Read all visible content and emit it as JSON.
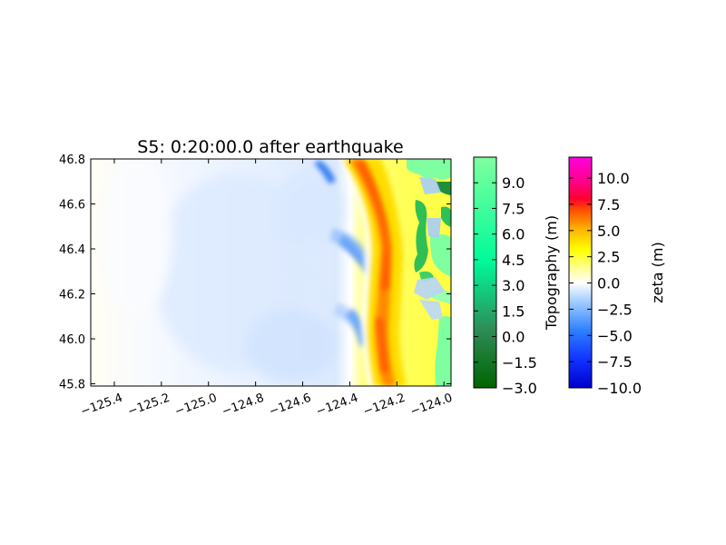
{
  "chart_data": {
    "type": "heatmap",
    "title": "S5: 0:20:00.0 after earthquake",
    "xlabel": "",
    "ylabel": "",
    "xlim": [
      -125.5,
      -123.97
    ],
    "ylim": [
      45.79,
      46.8
    ],
    "x_ticks": [
      -125.4,
      -125.2,
      -125.0,
      -124.8,
      -124.6,
      -124.4,
      -124.2,
      -124.0
    ],
    "x_tick_labels": [
      "−125.4",
      "−125.2",
      "−125.0",
      "−124.8",
      "−124.6",
      "−124.4",
      "−124.2",
      "−124.0"
    ],
    "y_ticks": [
      45.8,
      46.0,
      46.2,
      46.4,
      46.6,
      46.8
    ],
    "y_tick_labels": [
      "45.8",
      "46.0",
      "46.2",
      "46.4",
      "46.6",
      "46.8"
    ],
    "grid": false,
    "wave_front": {
      "description_free_field": "surface elevation zeta (m) field over ocean; land shown with topography colormap",
      "crest_longitude_by_latitude": [
        {
          "lat": 45.8,
          "lon": -124.22
        },
        {
          "lat": 46.0,
          "lon": -124.23
        },
        {
          "lat": 46.2,
          "lon": -124.21
        },
        {
          "lat": 46.4,
          "lon": -124.2
        },
        {
          "lat": 46.6,
          "lon": -124.27
        },
        {
          "lat": 46.8,
          "lon": -124.36
        }
      ],
      "trough_longitude_by_latitude": [
        {
          "lat": 46.02,
          "lon": -124.4
        },
        {
          "lat": 46.4,
          "lon": -124.4
        },
        {
          "lat": 46.76,
          "lon": -124.45
        }
      ],
      "peak_zeta": 7.5,
      "min_zeta": -6.0
    },
    "colorbars": [
      {
        "label": "Topography (m)",
        "colormap": "greens",
        "min": -3.0,
        "max": 10.5,
        "ticks": [
          9.0,
          7.5,
          6.0,
          4.5,
          3.0,
          1.5,
          0.0,
          -1.5,
          -3.0
        ],
        "tick_labels": [
          "9.0",
          "7.5",
          "6.0",
          "4.5",
          "3.0",
          "1.5",
          "0.0",
          "−1.5",
          "−3.0"
        ],
        "colors": [
          "#006400",
          "#2e8b57",
          "#00fa9a",
          "#7fff9f"
        ]
      },
      {
        "label": "zeta (m)",
        "colormap": "bwr-like tsunami",
        "min": -10.0,
        "max": 12.0,
        "ticks": [
          10.0,
          7.5,
          5.0,
          2.5,
          0.0,
          -2.5,
          -5.0,
          -7.5,
          -10.0
        ],
        "tick_labels": [
          "10.0",
          "7.5",
          "5.0",
          "2.5",
          "0.0",
          "−2.5",
          "−5.0",
          "−7.5",
          "−10.0"
        ],
        "colors": [
          "#0000cc",
          "#1f6fff",
          "#9cc8ff",
          "#ffffff",
          "#ffff66",
          "#ffcc00",
          "#ff6600",
          "#ff0033",
          "#ff00cc"
        ]
      }
    ]
  }
}
